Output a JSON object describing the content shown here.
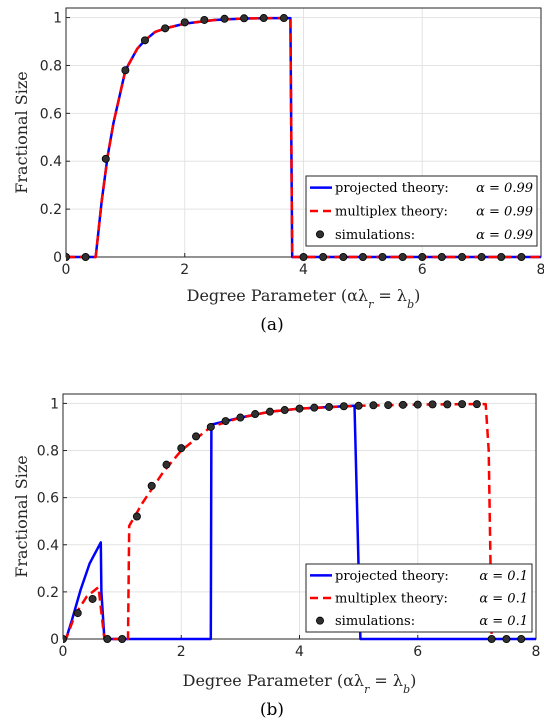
{
  "chart_data": [
    {
      "type": "line",
      "panel_label": "(a)",
      "xlabel": "Degree Parameter (αλ",
      "xlabel_sub1": "r",
      "xlabel_mid": " = λ",
      "xlabel_sub2": "b",
      "xlabel_end": ")",
      "ylabel": "Fractional Size",
      "xlim": [
        0,
        8
      ],
      "ylim": [
        0,
        1.04
      ],
      "xticks": [
        0,
        2,
        4,
        6,
        8
      ],
      "yticks": [
        0,
        0.2,
        0.4,
        0.6,
        0.8,
        1
      ],
      "ytick_labels": [
        "0",
        "0.2",
        "0.4",
        "0.6",
        "0.8",
        "1"
      ],
      "grid": true,
      "legend_position": "bottom-right",
      "series": [
        {
          "name": "projected theory:",
          "alpha": "α = 0.99",
          "style": "solid",
          "color": "#0000ff",
          "points": [
            [
              0,
              0
            ],
            [
              0.5,
              0
            ],
            [
              0.6,
              0.23
            ],
            [
              0.7,
              0.42
            ],
            [
              0.8,
              0.56
            ],
            [
              1.0,
              0.78
            ],
            [
              1.2,
              0.87
            ],
            [
              1.33,
              0.905
            ],
            [
              1.5,
              0.94
            ],
            [
              1.67,
              0.955
            ],
            [
              2.0,
              0.975
            ],
            [
              2.5,
              0.99
            ],
            [
              3.0,
              0.996
            ],
            [
              3.5,
              0.998
            ],
            [
              3.78,
              0.998
            ],
            [
              3.81,
              0
            ],
            [
              8,
              0
            ]
          ]
        },
        {
          "name": "multiplex theory:",
          "alpha": "α = 0.99",
          "style": "dashed",
          "color": "#ff0000",
          "points": [
            [
              0,
              0
            ],
            [
              0.5,
              0
            ],
            [
              0.6,
              0.23
            ],
            [
              0.7,
              0.42
            ],
            [
              0.8,
              0.56
            ],
            [
              1.0,
              0.78
            ],
            [
              1.2,
              0.87
            ],
            [
              1.33,
              0.905
            ],
            [
              1.5,
              0.94
            ],
            [
              1.67,
              0.955
            ],
            [
              2.0,
              0.975
            ],
            [
              2.5,
              0.99
            ],
            [
              3.0,
              0.996
            ],
            [
              3.5,
              0.998
            ],
            [
              3.78,
              0.998
            ],
            [
              3.81,
              0
            ],
            [
              8,
              0
            ]
          ]
        },
        {
          "name": "simulations:",
          "alpha": "α = 0.99",
          "style": "markers",
          "color": "#303030",
          "points": [
            [
              0,
              0
            ],
            [
              0.33,
              0
            ],
            [
              0.67,
              0.41
            ],
            [
              1.0,
              0.78
            ],
            [
              1.33,
              0.905
            ],
            [
              1.67,
              0.955
            ],
            [
              2.0,
              0.98
            ],
            [
              2.33,
              0.99
            ],
            [
              2.67,
              0.995
            ],
            [
              3.0,
              0.997
            ],
            [
              3.33,
              0.998
            ],
            [
              3.67,
              0.998
            ],
            [
              4.0,
              0
            ],
            [
              4.33,
              0
            ],
            [
              4.67,
              0
            ],
            [
              5.0,
              0
            ],
            [
              5.33,
              0
            ],
            [
              5.67,
              0
            ],
            [
              6.0,
              0
            ],
            [
              6.33,
              0
            ],
            [
              6.67,
              0
            ],
            [
              7.0,
              0
            ],
            [
              7.33,
              0
            ],
            [
              7.67,
              0
            ]
          ]
        }
      ]
    },
    {
      "type": "line",
      "panel_label": "(b)",
      "xlabel": "Degree Parameter (αλ",
      "xlabel_sub1": "r",
      "xlabel_mid": " = λ",
      "xlabel_sub2": "b",
      "xlabel_end": ")",
      "ylabel": "Fractional Size",
      "xlim": [
        0,
        8
      ],
      "ylim": [
        0,
        1.04
      ],
      "xticks": [
        0,
        2,
        4,
        6,
        8
      ],
      "yticks": [
        0,
        0.2,
        0.4,
        0.6,
        0.8,
        1
      ],
      "ytick_labels": [
        "0",
        "0.2",
        "0.4",
        "0.6",
        "0.8",
        "1"
      ],
      "grid": true,
      "legend_position": "bottom-right",
      "series": [
        {
          "name": "projected theory:",
          "alpha": "α = 0.1",
          "style": "solid",
          "color": "#0000ff",
          "points": [
            [
              0,
              0
            ],
            [
              0.05,
              0
            ],
            [
              0.15,
              0.08
            ],
            [
              0.3,
              0.21
            ],
            [
              0.45,
              0.32
            ],
            [
              0.64,
              0.41
            ],
            [
              0.65,
              0.2
            ],
            [
              0.7,
              0
            ],
            [
              2.5,
              0
            ],
            [
              2.51,
              0.91
            ],
            [
              3.0,
              0.94
            ],
            [
              3.5,
              0.965
            ],
            [
              4.0,
              0.978
            ],
            [
              4.5,
              0.985
            ],
            [
              4.93,
              0.99
            ],
            [
              5.03,
              0
            ],
            [
              8,
              0
            ]
          ]
        },
        {
          "name": "multiplex theory:",
          "alpha": "α = 0.1",
          "style": "dashed",
          "color": "#ff0000",
          "points": [
            [
              0,
              0
            ],
            [
              0.05,
              0
            ],
            [
              0.2,
              0.1
            ],
            [
              0.4,
              0.18
            ],
            [
              0.6,
              0.22
            ],
            [
              0.7,
              0
            ],
            [
              1.1,
              0
            ],
            [
              1.12,
              0.48
            ],
            [
              1.35,
              0.58
            ],
            [
              1.7,
              0.71
            ],
            [
              2.0,
              0.8
            ],
            [
              2.3,
              0.86
            ],
            [
              2.5,
              0.9
            ],
            [
              3.0,
              0.94
            ],
            [
              3.5,
              0.965
            ],
            [
              4.0,
              0.978
            ],
            [
              5.0,
              0.99
            ],
            [
              6.0,
              0.995
            ],
            [
              7.0,
              0.997
            ],
            [
              7.15,
              0.997
            ],
            [
              7.2,
              0.8
            ],
            [
              7.25,
              0
            ]
          ]
        },
        {
          "name": "simulations:",
          "alpha": "α = 0.1",
          "style": "markers",
          "color": "#303030",
          "points": [
            [
              0,
              0
            ],
            [
              0.25,
              0.11
            ],
            [
              0.5,
              0.17
            ],
            [
              0.75,
              0
            ],
            [
              1.0,
              0
            ],
            [
              1.25,
              0.52
            ],
            [
              1.5,
              0.65
            ],
            [
              1.75,
              0.74
            ],
            [
              2.0,
              0.81
            ],
            [
              2.25,
              0.86
            ],
            [
              2.5,
              0.9
            ],
            [
              2.75,
              0.925
            ],
            [
              3.0,
              0.94
            ],
            [
              3.25,
              0.955
            ],
            [
              3.5,
              0.965
            ],
            [
              3.75,
              0.972
            ],
            [
              4.0,
              0.978
            ],
            [
              4.25,
              0.982
            ],
            [
              4.5,
              0.985
            ],
            [
              4.75,
              0.988
            ],
            [
              5.0,
              0.99
            ],
            [
              5.25,
              0.992
            ],
            [
              5.5,
              0.993
            ],
            [
              5.75,
              0.994
            ],
            [
              6.0,
              0.995
            ],
            [
              6.25,
              0.996
            ],
            [
              6.5,
              0.996
            ],
            [
              6.75,
              0.997
            ],
            [
              7.0,
              0.997
            ],
            [
              7.25,
              0
            ],
            [
              7.5,
              0
            ],
            [
              7.75,
              0
            ]
          ]
        }
      ]
    }
  ]
}
